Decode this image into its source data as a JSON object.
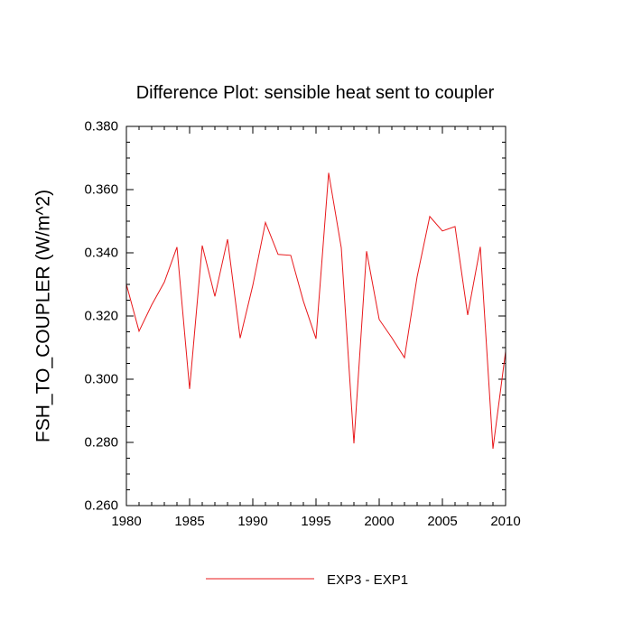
{
  "chart_data": {
    "type": "line",
    "title": "Difference Plot: sensible heat sent to coupler",
    "xlabel": "",
    "ylabel": "FSH_TO_COUPLER  (W/m^2)",
    "xlim": [
      1980,
      2010
    ],
    "ylim": [
      0.26,
      0.38
    ],
    "x_major_ticks": [
      1980,
      1985,
      1990,
      1995,
      2000,
      2005,
      2010
    ],
    "y_major_ticks": [
      0.26,
      0.28,
      0.3,
      0.32,
      0.34,
      0.36,
      0.38
    ],
    "x_tick_labels": [
      "1980",
      "1985",
      "1990",
      "1995",
      "2000",
      "2005",
      "2010"
    ],
    "y_tick_labels": [
      "0.260",
      "0.280",
      "0.300",
      "0.320",
      "0.340",
      "0.360",
      "0.380"
    ],
    "grid": false,
    "legend_position": "bottom-center",
    "series": [
      {
        "name": "EXP3 - EXP1",
        "color": "#e8181b",
        "x": [
          1980,
          1981,
          1982,
          1983,
          1984,
          1985,
          1986,
          1987,
          1988,
          1989,
          1990,
          1991,
          1992,
          1993,
          1994,
          1995,
          1996,
          1997,
          1998,
          1999,
          2000,
          2001,
          2002,
          2003,
          2004,
          2005,
          2006,
          2007,
          2008,
          2009,
          2010
        ],
        "values": [
          0.33,
          0.3152,
          0.3235,
          0.3307,
          0.3418,
          0.2969,
          0.3423,
          0.3262,
          0.3443,
          0.313,
          0.3297,
          0.3496,
          0.3395,
          0.3392,
          0.3247,
          0.3128,
          0.3653,
          0.3416,
          0.2797,
          0.3405,
          0.3189,
          0.3131,
          0.3068,
          0.3324,
          0.3515,
          0.3469,
          0.3483,
          0.3203,
          0.3419,
          0.278,
          0.3088
        ]
      }
    ]
  }
}
